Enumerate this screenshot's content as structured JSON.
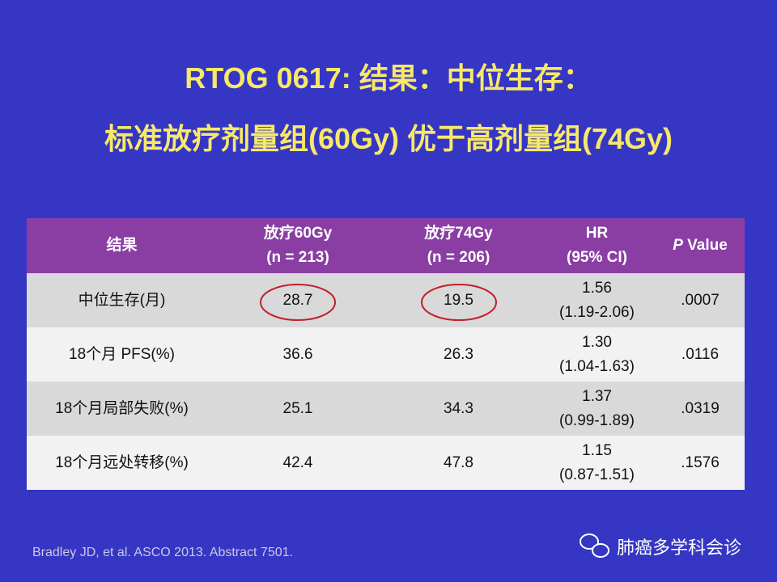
{
  "title": {
    "line1": "RTOG 0617: 结果：中位生存：",
    "line2": "标准放疗剂量组(60Gy) 优于高剂量组(74Gy)"
  },
  "table": {
    "header": [
      [
        "结果"
      ],
      [
        "放疗60Gy",
        "(n = 213)"
      ],
      [
        "放疗74Gy",
        "(n = 206)"
      ],
      [
        "HR",
        "(95%  CI)"
      ],
      [
        "P",
        "Value"
      ]
    ],
    "rows": [
      [
        [
          "中位生存(月)"
        ],
        [
          "28.7"
        ],
        [
          "19.5"
        ],
        [
          "1.56",
          "(1.19-2.06)"
        ],
        [
          ".0007"
        ]
      ],
      [
        [
          "18个月 PFS(%)"
        ],
        [
          "36.6"
        ],
        [
          "26.3"
        ],
        [
          "1.30",
          "(1.04-1.63)"
        ],
        [
          ".0116"
        ]
      ],
      [
        [
          "18个月局部失败(%)"
        ],
        [
          "25.1"
        ],
        [
          "34.3"
        ],
        [
          "1.37",
          "(0.99-1.89)"
        ],
        [
          ".0319"
        ]
      ],
      [
        [
          "18个月远处转移(%)"
        ],
        [
          "42.4"
        ],
        [
          "47.8"
        ],
        [
          "1.15",
          "(0.87-1.51)"
        ],
        [
          ".1576"
        ]
      ]
    ]
  },
  "footnote": "Bradley JD, et al. ASCO 2013. Abstract 7501.",
  "watermark": "肺癌多学科会诊"
}
